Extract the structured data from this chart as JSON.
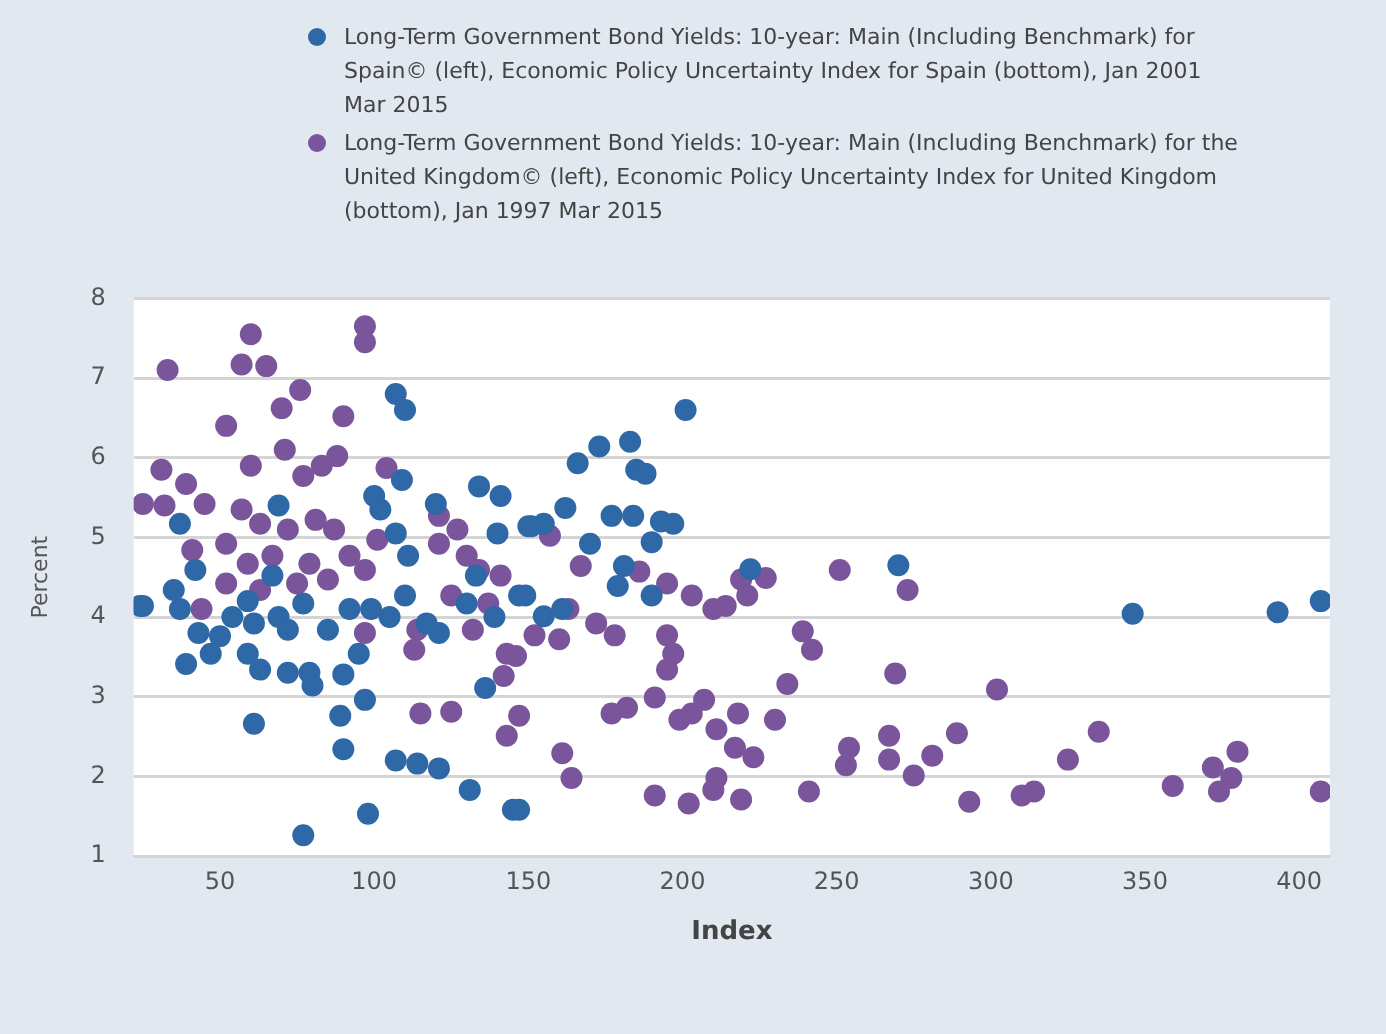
{
  "chart_data": {
    "type": "scatter",
    "xlabel": "Index",
    "ylabel": "Percent",
    "xlim": [
      22,
      410
    ],
    "ylim": [
      1,
      8
    ],
    "xticks": [
      50,
      100,
      150,
      200,
      250,
      300,
      350,
      400
    ],
    "yticks": [
      1,
      2,
      3,
      4,
      5,
      6,
      7,
      8
    ],
    "grid": "y",
    "legend": "top",
    "marker": "circle",
    "series": [
      {
        "name": "Long-Term Government Bond Yields: 10-year: Main (Including Benchmark) for Spain© (left), Economic Policy Uncertainty Index for Spain (bottom), Jan 2001 Mar 2015",
        "color": "#2f68a6",
        "x": [
          24,
          25,
          35,
          37,
          37,
          39,
          42,
          43,
          47,
          50,
          54,
          59,
          59,
          61,
          61,
          63,
          67,
          69,
          69,
          72,
          72,
          77,
          77,
          79,
          80,
          85,
          89,
          90,
          90,
          92,
          95,
          97,
          98,
          99,
          100,
          102,
          105,
          107,
          107,
          107,
          109,
          110,
          110,
          111,
          114,
          117,
          120,
          121,
          121,
          130,
          131,
          133,
          134,
          136,
          139,
          140,
          141,
          145,
          147,
          147,
          149,
          150,
          151,
          155,
          155,
          161,
          162,
          166,
          170,
          173,
          177,
          179,
          181,
          183,
          184,
          185,
          188,
          190,
          190,
          193,
          197,
          201,
          222,
          270,
          346,
          393,
          407
        ],
        "values": [
          4.14,
          4.14,
          4.34,
          4.1,
          5.17,
          3.41,
          4.59,
          3.8,
          3.54,
          3.76,
          4.0,
          3.54,
          4.2,
          3.92,
          2.66,
          3.34,
          4.52,
          4.0,
          5.4,
          3.84,
          3.3,
          4.17,
          1.26,
          3.3,
          3.14,
          3.84,
          2.76,
          3.28,
          2.34,
          4.1,
          3.54,
          2.96,
          1.53,
          4.1,
          5.52,
          5.35,
          4.0,
          5.05,
          2.2,
          6.8,
          5.72,
          4.27,
          6.6,
          4.77,
          2.16,
          3.92,
          5.42,
          3.8,
          2.1,
          4.17,
          1.83,
          4.52,
          5.64,
          3.11,
          4.0,
          5.05,
          5.52,
          1.58,
          4.27,
          1.58,
          4.27,
          5.14,
          5.14,
          4.01,
          5.17,
          4.1,
          5.37,
          5.93,
          4.92,
          6.14,
          5.27,
          4.39,
          4.64,
          6.2,
          5.27,
          5.85,
          5.8,
          4.94,
          4.27,
          5.2,
          5.17,
          6.6,
          4.6,
          4.65,
          4.04,
          4.06,
          4.2
        ]
      },
      {
        "name": "Long-Term Government Bond Yields: 10-year: Main (Including Benchmark) for the United Kingdom© (left), Economic Policy Uncertainty Index for United Kingdom (bottom), Jan 1997 Mar 2015",
        "color": "#7a559b",
        "x": [
          25,
          31,
          32,
          33,
          39,
          41,
          44,
          45,
          52,
          52,
          52,
          57,
          57,
          59,
          60,
          60,
          63,
          63,
          65,
          67,
          70,
          71,
          72,
          75,
          76,
          77,
          79,
          81,
          83,
          85,
          87,
          88,
          90,
          92,
          97,
          97,
          97,
          97,
          101,
          104,
          113,
          114,
          115,
          121,
          121,
          125,
          125,
          127,
          130,
          132,
          134,
          137,
          141,
          142,
          143,
          143,
          146,
          147,
          152,
          157,
          160,
          161,
          163,
          164,
          167,
          172,
          177,
          178,
          182,
          186,
          191,
          191,
          195,
          195,
          195,
          197,
          199,
          202,
          203,
          203,
          207,
          210,
          210,
          211,
          211,
          214,
          217,
          218,
          219,
          219,
          221,
          223,
          227,
          230,
          234,
          239,
          241,
          242,
          251,
          253,
          254,
          267,
          267,
          269,
          273,
          275,
          281,
          289,
          293,
          302,
          310,
          314,
          325,
          335,
          359,
          372,
          374,
          378,
          380,
          407
        ],
        "values": [
          5.42,
          5.85,
          5.4,
          7.1,
          5.67,
          4.84,
          4.1,
          5.42,
          6.4,
          4.92,
          4.42,
          7.17,
          5.35,
          4.67,
          7.55,
          5.9,
          5.17,
          4.34,
          7.15,
          4.77,
          6.62,
          6.1,
          5.1,
          4.42,
          6.85,
          5.77,
          4.67,
          5.22,
          5.9,
          4.47,
          5.1,
          6.02,
          6.52,
          4.77,
          7.65,
          7.45,
          4.59,
          3.8,
          4.97,
          5.87,
          3.59,
          3.84,
          2.79,
          5.27,
          4.92,
          4.27,
          2.81,
          5.1,
          4.77,
          3.84,
          4.59,
          4.17,
          4.52,
          3.26,
          3.54,
          2.51,
          3.51,
          2.76,
          3.77,
          5.02,
          3.72,
          2.29,
          4.1,
          1.98,
          4.64,
          3.92,
          2.79,
          3.77,
          2.86,
          4.57,
          2.99,
          1.76,
          4.42,
          3.77,
          3.34,
          3.54,
          2.71,
          1.66,
          4.27,
          2.79,
          2.96,
          4.1,
          1.83,
          2.59,
          1.98,
          4.14,
          2.36,
          2.79,
          4.47,
          1.71,
          4.27,
          2.24,
          4.49,
          2.71,
          3.16,
          3.82,
          1.81,
          3.59,
          4.59,
          2.14,
          2.36,
          2.51,
          2.21,
          3.29,
          4.34,
          2.01,
          2.26,
          2.54,
          1.68,
          3.09,
          1.76,
          1.81,
          2.21,
          2.56,
          1.88,
          2.11,
          1.81,
          1.98,
          2.31,
          1.81
        ]
      }
    ]
  }
}
